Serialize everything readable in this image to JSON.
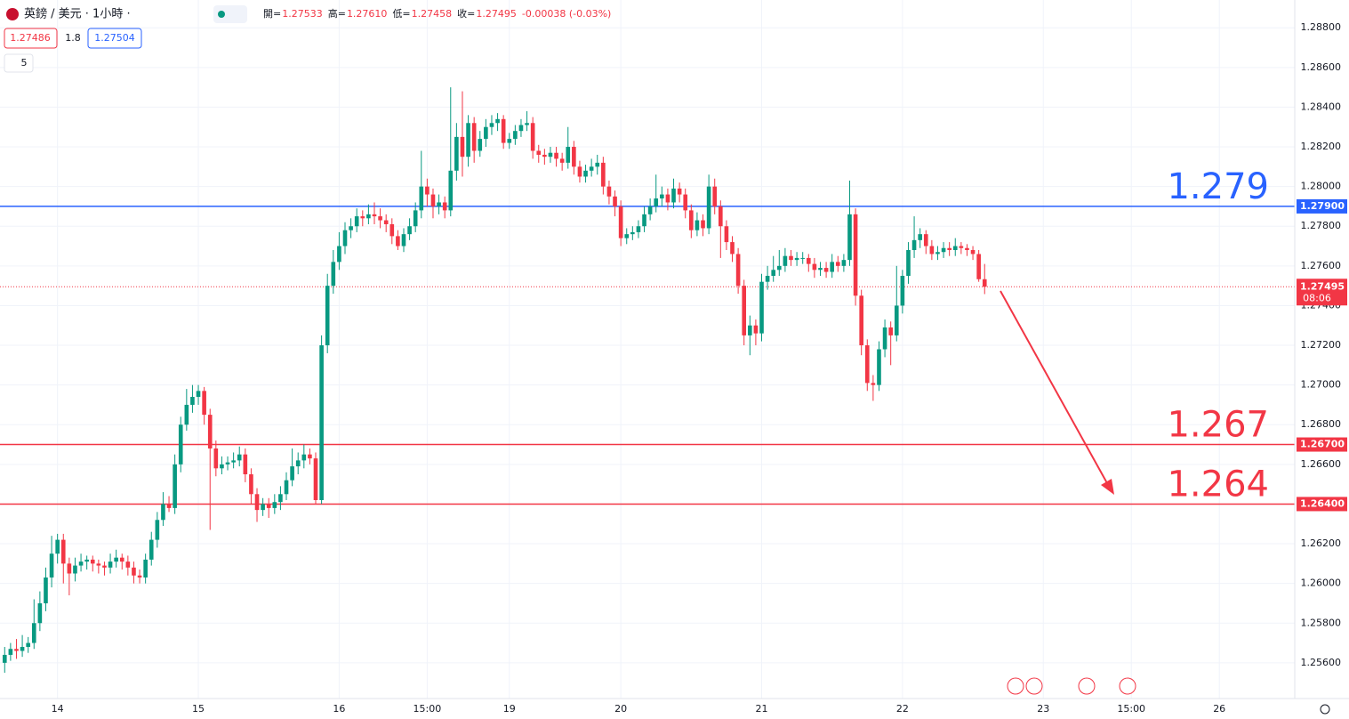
{
  "chart_data": {
    "type": "candlestick",
    "header": {
      "symbol": "英鎊 / 美元 · 1小時 ·",
      "ohlc": [
        {
          "label": "開=",
          "value": "1.27533"
        },
        {
          "label": "高=",
          "value": "1.27610"
        },
        {
          "label": "低=",
          "value": "1.27458"
        },
        {
          "label": "收=",
          "value": "1.27495"
        }
      ],
      "change": "-0.00038 (-0.03%)",
      "bid": "1.27486",
      "spread": "1.8",
      "ask": "1.27504",
      "indicator_count": "5"
    },
    "up_color": "#089981",
    "down_color": "#f23645",
    "grid": true,
    "xlim": [
      -0.8,
      219.7
    ],
    "xticks": [
      {
        "value": 9,
        "label": "14"
      },
      {
        "value": 33,
        "label": "15"
      },
      {
        "value": 57,
        "label": "16"
      },
      {
        "value": 72,
        "label": "15:00"
      },
      {
        "value": 86,
        "label": "19"
      },
      {
        "value": 105,
        "label": "20"
      },
      {
        "value": 129,
        "label": "21"
      },
      {
        "value": 153,
        "label": "22"
      },
      {
        "value": 177,
        "label": "23"
      },
      {
        "value": 192,
        "label": "15:00"
      },
      {
        "value": 207,
        "label": "26"
      }
    ],
    "ylim": [
      1.2542,
      1.2894
    ],
    "yticks": [
      {
        "value": 1.256,
        "label": "1.25600"
      },
      {
        "value": 1.258,
        "label": "1.25800"
      },
      {
        "value": 1.26,
        "label": "1.26000"
      },
      {
        "value": 1.262,
        "label": "1.26200"
      },
      {
        "value": 1.264,
        "label": "1.26400"
      },
      {
        "value": 1.266,
        "label": "1.26600"
      },
      {
        "value": 1.268,
        "label": "1.26800"
      },
      {
        "value": 1.27,
        "label": "1.27000"
      },
      {
        "value": 1.272,
        "label": "1.27200"
      },
      {
        "value": 1.274,
        "label": "1.27400"
      },
      {
        "value": 1.276,
        "label": "1.27600"
      },
      {
        "value": 1.278,
        "label": "1.27800"
      },
      {
        "value": 1.28,
        "label": "1.28000"
      },
      {
        "value": 1.282,
        "label": "1.28200"
      },
      {
        "value": 1.284,
        "label": "1.28400"
      },
      {
        "value": 1.286,
        "label": "1.28600"
      },
      {
        "value": 1.288,
        "label": "1.28800"
      }
    ],
    "levels": [
      {
        "value": 1.279,
        "label": "1.279",
        "axis_label": "1.27900",
        "color": "#2962ff"
      },
      {
        "value": 1.267,
        "label": "1.267",
        "axis_label": "1.26700",
        "color": "#f23645"
      },
      {
        "value": 1.264,
        "label": "1.264",
        "axis_label": "1.26400",
        "color": "#f23645"
      }
    ],
    "last_price": {
      "value": 1.27495,
      "time": "08:06",
      "color": "#f23645"
    },
    "candles": [
      [
        1.256,
        1.2568,
        1.2555,
        1.2564
      ],
      [
        1.2564,
        1.257,
        1.2561,
        1.2567
      ],
      [
        1.2567,
        1.2572,
        1.2562,
        1.2566
      ],
      [
        1.2566,
        1.2574,
        1.2563,
        1.2568
      ],
      [
        1.2568,
        1.2573,
        1.2565,
        1.257
      ],
      [
        1.257,
        1.2592,
        1.2567,
        1.258
      ],
      [
        1.258,
        1.2596,
        1.2576,
        1.259
      ],
      [
        1.259,
        1.2608,
        1.2586,
        1.2603
      ],
      [
        1.2603,
        1.2624,
        1.2598,
        1.2615
      ],
      [
        1.2615,
        1.2625,
        1.261,
        1.2622
      ],
      [
        1.2622,
        1.2625,
        1.26,
        1.261
      ],
      [
        1.261,
        1.2613,
        1.2594,
        1.2605
      ],
      [
        1.2605,
        1.2613,
        1.2601,
        1.2609
      ],
      [
        1.2609,
        1.2615,
        1.2606,
        1.2611
      ],
      [
        1.2611,
        1.2614,
        1.2607,
        1.2612
      ],
      [
        1.2612,
        1.2614,
        1.2606,
        1.261
      ],
      [
        1.261,
        1.2612,
        1.2605,
        1.2609
      ],
      [
        1.2609,
        1.2611,
        1.2604,
        1.2608
      ],
      [
        1.2608,
        1.2615,
        1.2605,
        1.2611
      ],
      [
        1.2611,
        1.2617,
        1.2608,
        1.2613
      ],
      [
        1.2613,
        1.2615,
        1.2607,
        1.2611
      ],
      [
        1.2611,
        1.2614,
        1.2604,
        1.2608
      ],
      [
        1.2608,
        1.2611,
        1.26,
        1.2604
      ],
      [
        1.2604,
        1.2607,
        1.26,
        1.2603
      ],
      [
        1.2603,
        1.2615,
        1.26,
        1.2612
      ],
      [
        1.2612,
        1.2626,
        1.2609,
        1.2622
      ],
      [
        1.2622,
        1.2636,
        1.2618,
        1.2632
      ],
      [
        1.2632,
        1.2646,
        1.2629,
        1.264
      ],
      [
        1.264,
        1.2644,
        1.2636,
        1.2638
      ],
      [
        1.2638,
        1.2665,
        1.2635,
        1.266
      ],
      [
        1.266,
        1.2684,
        1.2656,
        1.268
      ],
      [
        1.268,
        1.2698,
        1.2677,
        1.269
      ],
      [
        1.269,
        1.27,
        1.2686,
        1.2694
      ],
      [
        1.2694,
        1.27,
        1.269,
        1.2697
      ],
      [
        1.2697,
        1.2699,
        1.268,
        1.2685
      ],
      [
        1.2685,
        1.2688,
        1.2627,
        1.2668
      ],
      [
        1.2668,
        1.2672,
        1.2654,
        1.2658
      ],
      [
        1.2658,
        1.2664,
        1.2655,
        1.266
      ],
      [
        1.266,
        1.2664,
        1.2657,
        1.2661
      ],
      [
        1.2661,
        1.2666,
        1.2658,
        1.2662
      ],
      [
        1.2662,
        1.2669,
        1.2659,
        1.2665
      ],
      [
        1.2665,
        1.2668,
        1.2651,
        1.2655
      ],
      [
        1.2655,
        1.2658,
        1.264,
        1.2645
      ],
      [
        1.2645,
        1.2648,
        1.2631,
        1.2637
      ],
      [
        1.2637,
        1.2643,
        1.2634,
        1.264
      ],
      [
        1.264,
        1.2643,
        1.2633,
        1.2638
      ],
      [
        1.2638,
        1.2645,
        1.2635,
        1.2641
      ],
      [
        1.2641,
        1.2649,
        1.2637,
        1.2645
      ],
      [
        1.2645,
        1.2656,
        1.2642,
        1.2652
      ],
      [
        1.2652,
        1.2668,
        1.2649,
        1.2659
      ],
      [
        1.2659,
        1.2666,
        1.2655,
        1.2662
      ],
      [
        1.2662,
        1.267,
        1.2658,
        1.2665
      ],
      [
        1.2665,
        1.2668,
        1.266,
        1.2663
      ],
      [
        1.2663,
        1.2666,
        1.264,
        1.2642
      ],
      [
        1.2642,
        1.2725,
        1.264,
        1.272
      ],
      [
        1.272,
        1.2756,
        1.2716,
        1.275
      ],
      [
        1.275,
        1.2768,
        1.2746,
        1.2762
      ],
      [
        1.2762,
        1.2777,
        1.2758,
        1.277
      ],
      [
        1.277,
        1.2782,
        1.2766,
        1.2778
      ],
      [
        1.2778,
        1.2784,
        1.2774,
        1.278
      ],
      [
        1.278,
        1.2789,
        1.2777,
        1.2785
      ],
      [
        1.2785,
        1.2788,
        1.278,
        1.2784
      ],
      [
        1.2784,
        1.2791,
        1.2781,
        1.2786
      ],
      [
        1.2786,
        1.2792,
        1.2781,
        1.2785
      ],
      [
        1.2785,
        1.2789,
        1.2779,
        1.2783
      ],
      [
        1.2783,
        1.2786,
        1.2777,
        1.2781
      ],
      [
        1.2781,
        1.2784,
        1.2771,
        1.2775
      ],
      [
        1.2775,
        1.2778,
        1.2768,
        1.277
      ],
      [
        1.277,
        1.2779,
        1.2767,
        1.2776
      ],
      [
        1.2776,
        1.2784,
        1.2773,
        1.278
      ],
      [
        1.278,
        1.2792,
        1.2777,
        1.2788
      ],
      [
        1.2788,
        1.2818,
        1.2784,
        1.28
      ],
      [
        1.28,
        1.2804,
        1.279,
        1.2796
      ],
      [
        1.2796,
        1.2799,
        1.2784,
        1.279
      ],
      [
        1.279,
        1.2796,
        1.2786,
        1.2792
      ],
      [
        1.2792,
        1.2795,
        1.2784,
        1.2788
      ],
      [
        1.2788,
        1.285,
        1.2785,
        1.2808
      ],
      [
        1.2808,
        1.2832,
        1.2803,
        1.2825
      ],
      [
        1.2825,
        1.2848,
        1.2805,
        1.2815
      ],
      [
        1.2815,
        1.2836,
        1.281,
        1.2832
      ],
      [
        1.2832,
        1.2835,
        1.2812,
        1.2818
      ],
      [
        1.2818,
        1.2828,
        1.2815,
        1.2824
      ],
      [
        1.2824,
        1.2834,
        1.282,
        1.283
      ],
      [
        1.283,
        1.2836,
        1.2826,
        1.2832
      ],
      [
        1.2832,
        1.2837,
        1.2828,
        1.2834
      ],
      [
        1.2834,
        1.2836,
        1.2819,
        1.2822
      ],
      [
        1.2822,
        1.2827,
        1.2819,
        1.2824
      ],
      [
        1.2824,
        1.2831,
        1.2821,
        1.2828
      ],
      [
        1.2828,
        1.2834,
        1.2825,
        1.2831
      ],
      [
        1.2831,
        1.2838,
        1.2828,
        1.2832
      ],
      [
        1.2832,
        1.2835,
        1.2814,
        1.2818
      ],
      [
        1.2818,
        1.2821,
        1.2812,
        1.2816
      ],
      [
        1.2816,
        1.2819,
        1.2811,
        1.2815
      ],
      [
        1.2815,
        1.282,
        1.2812,
        1.2817
      ],
      [
        1.2817,
        1.282,
        1.281,
        1.2814
      ],
      [
        1.2814,
        1.2817,
        1.2808,
        1.2812
      ],
      [
        1.2812,
        1.283,
        1.2809,
        1.282
      ],
      [
        1.282,
        1.2823,
        1.2806,
        1.281
      ],
      [
        1.281,
        1.2813,
        1.2802,
        1.2805
      ],
      [
        1.2805,
        1.2811,
        1.2802,
        1.2808
      ],
      [
        1.2808,
        1.2814,
        1.2805,
        1.281
      ],
      [
        1.281,
        1.2816,
        1.2806,
        1.2812
      ],
      [
        1.2812,
        1.2815,
        1.2796,
        1.28
      ],
      [
        1.28,
        1.2803,
        1.2791,
        1.2795
      ],
      [
        1.2795,
        1.2798,
        1.2785,
        1.279
      ],
      [
        1.279,
        1.2793,
        1.277,
        1.2774
      ],
      [
        1.2774,
        1.2779,
        1.2771,
        1.2776
      ],
      [
        1.2776,
        1.278,
        1.2773,
        1.2777
      ],
      [
        1.2777,
        1.2783,
        1.2774,
        1.278
      ],
      [
        1.278,
        1.279,
        1.2777,
        1.2786
      ],
      [
        1.2786,
        1.2794,
        1.2783,
        1.279
      ],
      [
        1.279,
        1.2806,
        1.2787,
        1.2794
      ],
      [
        1.2794,
        1.28,
        1.279,
        1.2796
      ],
      [
        1.2796,
        1.2799,
        1.2788,
        1.2792
      ],
      [
        1.2792,
        1.2804,
        1.2789,
        1.2799
      ],
      [
        1.2799,
        1.2802,
        1.2792,
        1.2796
      ],
      [
        1.2796,
        1.2799,
        1.2784,
        1.2788
      ],
      [
        1.2788,
        1.2791,
        1.2774,
        1.2778
      ],
      [
        1.2778,
        1.2787,
        1.2775,
        1.2783
      ],
      [
        1.2783,
        1.2786,
        1.2775,
        1.2779
      ],
      [
        1.2779,
        1.2806,
        1.2776,
        1.28
      ],
      [
        1.28,
        1.2804,
        1.2786,
        1.279
      ],
      [
        1.279,
        1.2793,
        1.2764,
        1.278
      ],
      [
        1.278,
        1.2783,
        1.2768,
        1.2772
      ],
      [
        1.2772,
        1.2775,
        1.2762,
        1.2766
      ],
      [
        1.2766,
        1.2769,
        1.2746,
        1.275
      ],
      [
        1.275,
        1.2753,
        1.272,
        1.2725
      ],
      [
        1.2725,
        1.2735,
        1.2715,
        1.273
      ],
      [
        1.273,
        1.2733,
        1.272,
        1.2726
      ],
      [
        1.2726,
        1.2756,
        1.2722,
        1.2752
      ],
      [
        1.2752,
        1.276,
        1.2748,
        1.2755
      ],
      [
        1.2755,
        1.2765,
        1.2752,
        1.2758
      ],
      [
        1.2758,
        1.2768,
        1.2755,
        1.276
      ],
      [
        1.276,
        1.2769,
        1.2757,
        1.2765
      ],
      [
        1.2765,
        1.2768,
        1.276,
        1.2763
      ],
      [
        1.2763,
        1.2767,
        1.276,
        1.2764
      ],
      [
        1.2764,
        1.2767,
        1.2761,
        1.2764
      ],
      [
        1.2764,
        1.2766,
        1.2757,
        1.2761
      ],
      [
        1.2761,
        1.2764,
        1.2754,
        1.2758
      ],
      [
        1.2758,
        1.2762,
        1.2755,
        1.2759
      ],
      [
        1.2759,
        1.2762,
        1.2754,
        1.2757
      ],
      [
        1.2757,
        1.2766,
        1.2754,
        1.2762
      ],
      [
        1.2762,
        1.2765,
        1.2757,
        1.276
      ],
      [
        1.276,
        1.2766,
        1.2757,
        1.2763
      ],
      [
        1.2763,
        1.2803,
        1.276,
        1.2786
      ],
      [
        1.2786,
        1.2789,
        1.274,
        1.2745
      ],
      [
        1.2745,
        1.2748,
        1.2715,
        1.272
      ],
      [
        1.272,
        1.2723,
        1.2697,
        1.2701
      ],
      [
        1.2701,
        1.2705,
        1.2692,
        1.27
      ],
      [
        1.27,
        1.2722,
        1.2697,
        1.2718
      ],
      [
        1.2718,
        1.2733,
        1.2714,
        1.2729
      ],
      [
        1.2729,
        1.2732,
        1.271,
        1.2725
      ],
      [
        1.2725,
        1.276,
        1.2722,
        1.274
      ],
      [
        1.274,
        1.2758,
        1.2736,
        1.2755
      ],
      [
        1.2755,
        1.2772,
        1.2751,
        1.2768
      ],
      [
        1.2768,
        1.2785,
        1.2764,
        1.2773
      ],
      [
        1.2773,
        1.2779,
        1.2769,
        1.2776
      ],
      [
        1.2776,
        1.2778,
        1.2766,
        1.277
      ],
      [
        1.277,
        1.2773,
        1.2763,
        1.2766
      ],
      [
        1.2766,
        1.277,
        1.2763,
        1.2767
      ],
      [
        1.2767,
        1.2772,
        1.2764,
        1.2769
      ],
      [
        1.2769,
        1.2772,
        1.2765,
        1.2768
      ],
      [
        1.2768,
        1.2774,
        1.2765,
        1.277
      ],
      [
        1.277,
        1.2772,
        1.2766,
        1.2769
      ],
      [
        1.2769,
        1.2771,
        1.2765,
        1.2768
      ],
      [
        1.2768,
        1.277,
        1.2763,
        1.2766
      ],
      [
        1.2766,
        1.2768,
        1.2752,
        1.27533
      ],
      [
        1.27533,
        1.2761,
        1.27458,
        1.27495
      ]
    ]
  }
}
